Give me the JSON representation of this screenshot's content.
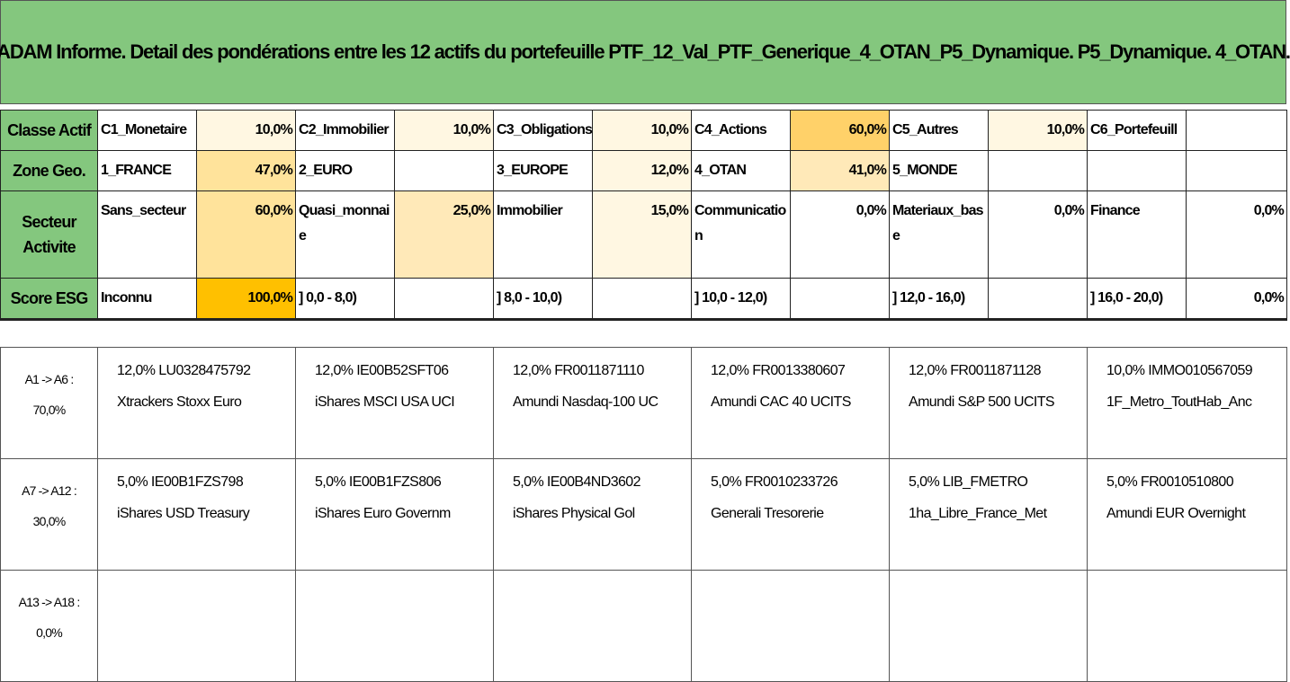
{
  "title": "ADAM Informe. Detail des pondérations entre les 12 actifs du portefeuille PTF_12_Val_PTF_Generique_4_OTAN_P5_Dynamique. P5_Dynamique. 4_OTAN.",
  "rows": {
    "classe": {
      "label": "Classe Actif",
      "cells": [
        {
          "name": "C1_Monetaire",
          "pct": "10,0%"
        },
        {
          "name": "C2_Immobilier",
          "pct": "10,0%"
        },
        {
          "name": "C3_Obligations",
          "pct": "10,0%"
        },
        {
          "name": "C4_Actions",
          "pct": "60,0%"
        },
        {
          "name": "C5_Autres",
          "pct": "10,0%"
        },
        {
          "name": "C6_Portefeuill",
          "pct": ""
        }
      ]
    },
    "zone": {
      "label": "Zone Geo.",
      "cells": [
        {
          "name": "1_FRANCE",
          "pct": "47,0%"
        },
        {
          "name": "2_EURO",
          "pct": ""
        },
        {
          "name": "3_EUROPE",
          "pct": "12,0%"
        },
        {
          "name": "4_OTAN",
          "pct": "41,0%"
        },
        {
          "name": "5_MONDE",
          "pct": ""
        },
        {
          "name": "",
          "pct": ""
        }
      ]
    },
    "secteur": {
      "label": "Secteur Activite",
      "cells": [
        {
          "name": "Sans_secteur",
          "pct": "60,0%"
        },
        {
          "name": "Quasi_monnaie",
          "pct": "25,0%"
        },
        {
          "name": "Immobilier",
          "pct": "15,0%"
        },
        {
          "name": "Communication",
          "pct": "0,0%"
        },
        {
          "name": "Materiaux_base",
          "pct": "0,0%"
        },
        {
          "name": "Finance",
          "pct": "0,0%"
        }
      ]
    },
    "esg": {
      "label": "Score ESG",
      "cells": [
        {
          "name": "Inconnu",
          "pct": "100,0%"
        },
        {
          "name": "] 0,0 - 8,0)",
          "pct": ""
        },
        {
          "name": "] 8,0 - 10,0)",
          "pct": ""
        },
        {
          "name": "] 10,0 - 12,0)",
          "pct": ""
        },
        {
          "name": "] 12,0 - 16,0)",
          "pct": ""
        },
        {
          "name": "] 16,0 - 20,0)",
          "pct": "0,0%"
        }
      ]
    }
  },
  "assets": [
    {
      "label1": "A1 -> A6 :",
      "label2": "70,0%",
      "items": [
        {
          "line1": "12,0% LU0328475792",
          "line2": "Xtrackers Stoxx Euro"
        },
        {
          "line1": "12,0% IE00B52SFT06",
          "line2": "iShares MSCI USA UCI"
        },
        {
          "line1": "12,0% FR0011871110",
          "line2": "Amundi Nasdaq-100 UC"
        },
        {
          "line1": "12,0% FR0013380607",
          "line2": "Amundi CAC 40 UCITS"
        },
        {
          "line1": "12,0% FR0011871128",
          "line2": "Amundi S&P 500 UCITS"
        },
        {
          "line1": "10,0% IMMO010567059",
          "line2": "1F_Metro_ToutHab_Anc"
        }
      ]
    },
    {
      "label1": "A7 -> A12 :",
      "label2": "30,0%",
      "items": [
        {
          "line1": "5,0% IE00B1FZS798",
          "line2": "iShares USD Treasury"
        },
        {
          "line1": "5,0% IE00B1FZS806",
          "line2": "iShares Euro Governm"
        },
        {
          "line1": "5,0% IE00B4ND3602",
          "line2": "iShares Physical Gol"
        },
        {
          "line1": "5,0% FR0010233726",
          "line2": "Generali Tresorerie"
        },
        {
          "line1": "5,0% LIB_FMETRO",
          "line2": "1ha_Libre_France_Met"
        },
        {
          "line1": "5,0% FR0010510800",
          "line2": "Amundi EUR Overnight"
        }
      ]
    },
    {
      "label1": "A13 -> A18 :",
      "label2": "0,0%",
      "items": [
        {
          "line1": "",
          "line2": ""
        },
        {
          "line1": "",
          "line2": ""
        },
        {
          "line1": "",
          "line2": ""
        },
        {
          "line1": "",
          "line2": ""
        },
        {
          "line1": "",
          "line2": ""
        },
        {
          "line1": "",
          "line2": ""
        }
      ]
    }
  ]
}
